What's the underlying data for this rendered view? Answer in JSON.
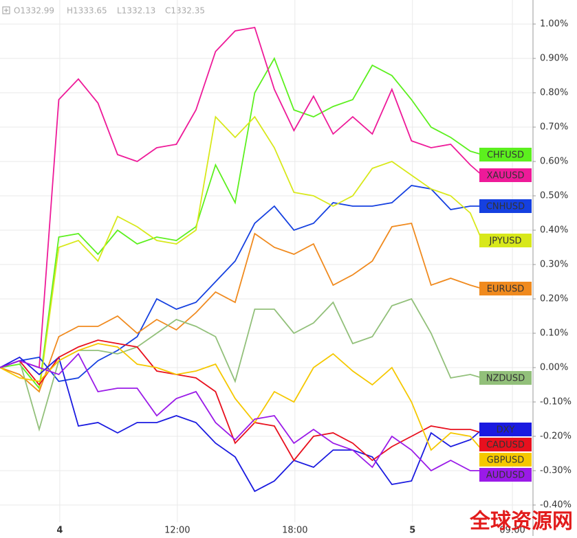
{
  "header": {
    "ohlc": [
      "O1332.99",
      "H1333.65",
      "L1332.13",
      "C1332.35"
    ]
  },
  "watermark": "全球资源网",
  "chart_data": {
    "type": "line",
    "x": [
      0,
      1,
      2,
      3,
      4,
      5,
      6,
      7,
      8,
      9,
      10,
      11,
      12,
      13,
      14,
      15,
      16,
      17,
      18,
      19,
      20,
      21,
      22,
      23,
      24,
      24.6
    ],
    "xlim": [
      0,
      27.2
    ],
    "xticks": [
      {
        "value": 3.05,
        "label": "4"
      },
      {
        "value": 9.05,
        "label": "12:00"
      },
      {
        "value": 15.05,
        "label": "18:00"
      },
      {
        "value": 21.05,
        "label": "5"
      },
      {
        "value": 26.15,
        "label": "09:00"
      }
    ],
    "ylim": [
      -0.45,
      1.07
    ],
    "yticks": [
      {
        "value": 1,
        "label": "1.00%"
      },
      {
        "value": 0.9,
        "label": "0.90%"
      },
      {
        "value": 0.8,
        "label": "0.80%"
      },
      {
        "value": 0.7,
        "label": "0.70%"
      },
      {
        "value": 0.6,
        "label": "0.60%"
      },
      {
        "value": 0.5,
        "label": "0.50%"
      },
      {
        "value": 0.4,
        "label": "0.40%"
      },
      {
        "value": 0.3,
        "label": "0.30%"
      },
      {
        "value": 0.2,
        "label": "0.20%"
      },
      {
        "value": 0.1,
        "label": "0.10%"
      },
      {
        "value": 0,
        "label": "0.00%"
      },
      {
        "value": -0.1,
        "label": "-0.10%"
      },
      {
        "value": -0.2,
        "label": "-0.20%"
      },
      {
        "value": -0.3,
        "label": "-0.30%"
      },
      {
        "value": -0.4,
        "label": "-0.40%"
      }
    ],
    "grid": true,
    "series": [
      {
        "name": "CHFUSD",
        "color": "#5cf01e",
        "values": [
          0,
          0.01,
          -0.06,
          0.38,
          0.39,
          0.33,
          0.4,
          0.36,
          0.38,
          0.37,
          0.41,
          0.59,
          0.48,
          0.8,
          0.9,
          0.75,
          0.73,
          0.76,
          0.78,
          0.88,
          0.85,
          0.78,
          0.7,
          0.67,
          0.63,
          0.62
        ]
      },
      {
        "name": "XAUUSD",
        "color": "#ee1a99",
        "values": [
          0,
          0.02,
          0.0,
          0.78,
          0.84,
          0.77,
          0.62,
          0.6,
          0.64,
          0.65,
          0.75,
          0.92,
          0.98,
          0.99,
          0.81,
          0.69,
          0.79,
          0.68,
          0.73,
          0.68,
          0.81,
          0.66,
          0.64,
          0.65,
          0.59,
          0.56
        ]
      },
      {
        "name": "CNHUSD",
        "color": "#1540e0",
        "values": [
          0,
          0.02,
          0.03,
          -0.04,
          -0.03,
          0.02,
          0.05,
          0.09,
          0.2,
          0.17,
          0.19,
          0.25,
          0.31,
          0.42,
          0.47,
          0.4,
          0.42,
          0.48,
          0.47,
          0.47,
          0.48,
          0.53,
          0.52,
          0.46,
          0.47,
          0.47
        ]
      },
      {
        "name": "JPYUSD",
        "color": "#d8e81a",
        "values": [
          0,
          -0.02,
          -0.07,
          0.35,
          0.37,
          0.31,
          0.44,
          0.41,
          0.37,
          0.36,
          0.4,
          0.73,
          0.67,
          0.73,
          0.64,
          0.51,
          0.5,
          0.47,
          0.5,
          0.58,
          0.6,
          0.56,
          0.52,
          0.5,
          0.45,
          0.37
        ]
      },
      {
        "name": "EURUSD",
        "color": "#f08a1e",
        "values": [
          0,
          -0.02,
          -0.07,
          0.09,
          0.12,
          0.12,
          0.15,
          0.1,
          0.14,
          0.11,
          0.16,
          0.22,
          0.19,
          0.39,
          0.35,
          0.33,
          0.36,
          0.24,
          0.27,
          0.31,
          0.41,
          0.42,
          0.24,
          0.26,
          0.24,
          0.23
        ]
      },
      {
        "name": "NZDUSD",
        "color": "#92c07a",
        "values": [
          0,
          0.02,
          -0.18,
          0.02,
          0.05,
          0.05,
          0.04,
          0.06,
          0.1,
          0.14,
          0.12,
          0.09,
          -0.04,
          0.17,
          0.17,
          0.1,
          0.13,
          0.19,
          0.07,
          0.09,
          0.18,
          0.2,
          0.1,
          -0.03,
          -0.02,
          -0.03
        ]
      },
      {
        "name": "DXY",
        "color": "#1a1ae0",
        "values": [
          0,
          0.03,
          -0.02,
          0.03,
          -0.17,
          -0.16,
          -0.19,
          -0.16,
          -0.16,
          -0.14,
          -0.16,
          -0.22,
          -0.26,
          -0.36,
          -0.33,
          -0.27,
          -0.29,
          -0.24,
          -0.24,
          -0.26,
          -0.34,
          -0.33,
          -0.19,
          -0.23,
          -0.21,
          -0.18
        ]
      },
      {
        "name": "CADUSD",
        "color": "#e8101e",
        "values": [
          0,
          0.02,
          -0.05,
          0.03,
          0.06,
          0.08,
          0.07,
          0.06,
          -0.01,
          -0.02,
          -0.03,
          -0.07,
          -0.22,
          -0.16,
          -0.17,
          -0.27,
          -0.2,
          -0.19,
          -0.22,
          -0.27,
          -0.23,
          -0.2,
          -0.17,
          -0.18,
          -0.18,
          -0.19
        ]
      },
      {
        "name": "GBPUSD",
        "color": "#f5c800",
        "values": [
          0,
          -0.03,
          -0.04,
          0.02,
          0.05,
          0.07,
          0.06,
          0.01,
          0.0,
          -0.02,
          -0.01,
          0.01,
          -0.09,
          -0.16,
          -0.07,
          -0.1,
          0.0,
          0.04,
          -0.01,
          -0.05,
          0.0,
          -0.1,
          -0.24,
          -0.19,
          -0.2,
          -0.24
        ]
      },
      {
        "name": "AUDUSD",
        "color": "#9a1ae8",
        "values": [
          0,
          0.02,
          0.0,
          -0.02,
          0.04,
          -0.07,
          -0.06,
          -0.06,
          -0.14,
          -0.09,
          -0.07,
          -0.16,
          -0.21,
          -0.15,
          -0.14,
          -0.22,
          -0.18,
          -0.22,
          -0.24,
          -0.29,
          -0.2,
          -0.24,
          -0.3,
          -0.27,
          -0.3,
          -0.3
        ]
      }
    ]
  }
}
